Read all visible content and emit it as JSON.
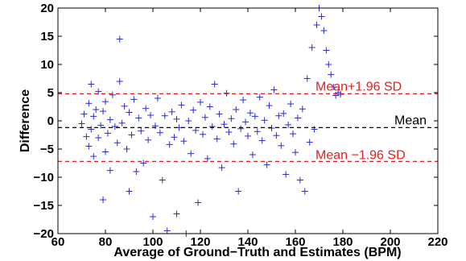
{
  "chart_data": {
    "type": "scatter",
    "xlabel": "Average of Ground−Truth and Estimates (BPM)",
    "ylabel": "Difference",
    "xlim": [
      60,
      220
    ],
    "ylim": [
      -20,
      20
    ],
    "x_ticks": [
      "60",
      "80",
      "100",
      "120",
      "140",
      "160",
      "180",
      "200",
      "220"
    ],
    "y_ticks": [
      "20",
      "15",
      "10",
      "5",
      "0",
      "−5",
      "−10",
      "−15",
      "−20"
    ],
    "grid": false,
    "marker": "+",
    "marker_color": "#2a2ad9",
    "reference_lines": [
      {
        "label": "Mean+1.96 SD",
        "y": 4.8,
        "color": "#e02020",
        "style": "dashed"
      },
      {
        "label": "Mean",
        "y": -1.2,
        "color": "#000000",
        "style": "dashed"
      },
      {
        "label": "Mean −1.96 SD",
        "y": -7.2,
        "color": "#e02020",
        "style": "dashed"
      }
    ],
    "series": [
      {
        "points": [
          [
            70,
            -0.5
          ],
          [
            71,
            1.2
          ],
          [
            72,
            -2.8
          ],
          [
            73,
            3.1
          ],
          [
            73,
            -4.5
          ],
          [
            74,
            6.5
          ],
          [
            74,
            -1.5
          ],
          [
            75,
            0.8
          ],
          [
            75,
            -6.3
          ],
          [
            76,
            2.0
          ],
          [
            77,
            -3.0
          ],
          [
            77,
            5.2
          ],
          [
            78,
            -0.8
          ],
          [
            79,
            -14.0
          ],
          [
            79,
            1.7
          ],
          [
            80,
            -5.5
          ],
          [
            80,
            3.4
          ],
          [
            81,
            -2.2
          ],
          [
            82,
            0.2
          ],
          [
            82,
            -8.8
          ],
          [
            83,
            4.6
          ],
          [
            84,
            -1.0
          ],
          [
            85,
            -3.9
          ],
          [
            86,
            14.5
          ],
          [
            86,
            7.0
          ],
          [
            87,
            -0.4
          ],
          [
            88,
            2.6
          ],
          [
            89,
            -5.0
          ],
          [
            90,
            -12.5
          ],
          [
            90,
            1.5
          ],
          [
            91,
            -2.5
          ],
          [
            92,
            3.8
          ],
          [
            93,
            -9.0
          ],
          [
            94,
            0.5
          ],
          [
            95,
            -1.8
          ],
          [
            96,
            -7.5
          ],
          [
            97,
            2.2
          ],
          [
            98,
            -3.4
          ],
          [
            99,
            1.0
          ],
          [
            100,
            -17.0
          ],
          [
            101,
            -0.9
          ],
          [
            102,
            4.0
          ],
          [
            103,
            -2.1
          ],
          [
            104,
            -10.5
          ],
          [
            105,
            0.9
          ],
          [
            106,
            -19.5
          ],
          [
            107,
            -4.2
          ],
          [
            108,
            1.6
          ],
          [
            109,
            -2.9
          ],
          [
            110,
            -16.5
          ],
          [
            110,
            0.3
          ],
          [
            111,
            -1.2
          ],
          [
            112,
            2.8
          ],
          [
            113,
            -3.6
          ],
          [
            114,
            -20.0
          ],
          [
            115,
            0.0
          ],
          [
            116,
            -5.8
          ],
          [
            117,
            1.9
          ],
          [
            118,
            -1.7
          ],
          [
            119,
            -14.5
          ],
          [
            120,
            3.3
          ],
          [
            121,
            -2.4
          ],
          [
            122,
            0.6
          ],
          [
            123,
            -6.7
          ],
          [
            124,
            2.5
          ],
          [
            125,
            -1.0
          ],
          [
            126,
            6.5
          ],
          [
            127,
            -3.2
          ],
          [
            128,
            1.2
          ],
          [
            129,
            -8.3
          ],
          [
            130,
            -0.6
          ],
          [
            131,
            4.9
          ],
          [
            132,
            -2.0
          ],
          [
            133,
            0.4
          ],
          [
            134,
            -4.1
          ],
          [
            135,
            2.0
          ],
          [
            136,
            -12.5
          ],
          [
            137,
            -1.4
          ],
          [
            138,
            3.7
          ],
          [
            139,
            -0.2
          ],
          [
            140,
            -2.7
          ],
          [
            141,
            1.4
          ],
          [
            142,
            -6.0
          ],
          [
            143,
            0.8
          ],
          [
            144,
            -1.9
          ],
          [
            145,
            4.2
          ],
          [
            146,
            -3.5
          ],
          [
            147,
            0.1
          ],
          [
            148,
            -7.8
          ],
          [
            149,
            2.7
          ],
          [
            150,
            -1.3
          ],
          [
            151,
            5.5
          ],
          [
            152,
            -2.6
          ],
          [
            153,
            0.9
          ],
          [
            154,
            -4.4
          ],
          [
            155,
            1.3
          ],
          [
            156,
            -9.5
          ],
          [
            157,
            -0.7
          ],
          [
            158,
            3.0
          ],
          [
            159,
            -2.3
          ],
          [
            160,
            -5.6
          ],
          [
            161,
            0.5
          ],
          [
            162,
            -10.5
          ],
          [
            163,
            2.1
          ],
          [
            164,
            -12.5
          ],
          [
            165,
            7.5
          ],
          [
            166,
            -3.8
          ],
          [
            167,
            13.0
          ],
          [
            168,
            -1.5
          ],
          [
            169,
            17.0
          ],
          [
            170,
            20.0
          ],
          [
            171,
            18.5
          ],
          [
            172,
            16.0
          ],
          [
            173,
            12.5
          ],
          [
            174,
            10.0
          ],
          [
            175,
            8.2
          ],
          [
            176,
            6.0
          ],
          [
            177,
            4.5
          ],
          [
            178,
            5.0
          ],
          [
            179,
            4.7
          ]
        ]
      }
    ]
  }
}
